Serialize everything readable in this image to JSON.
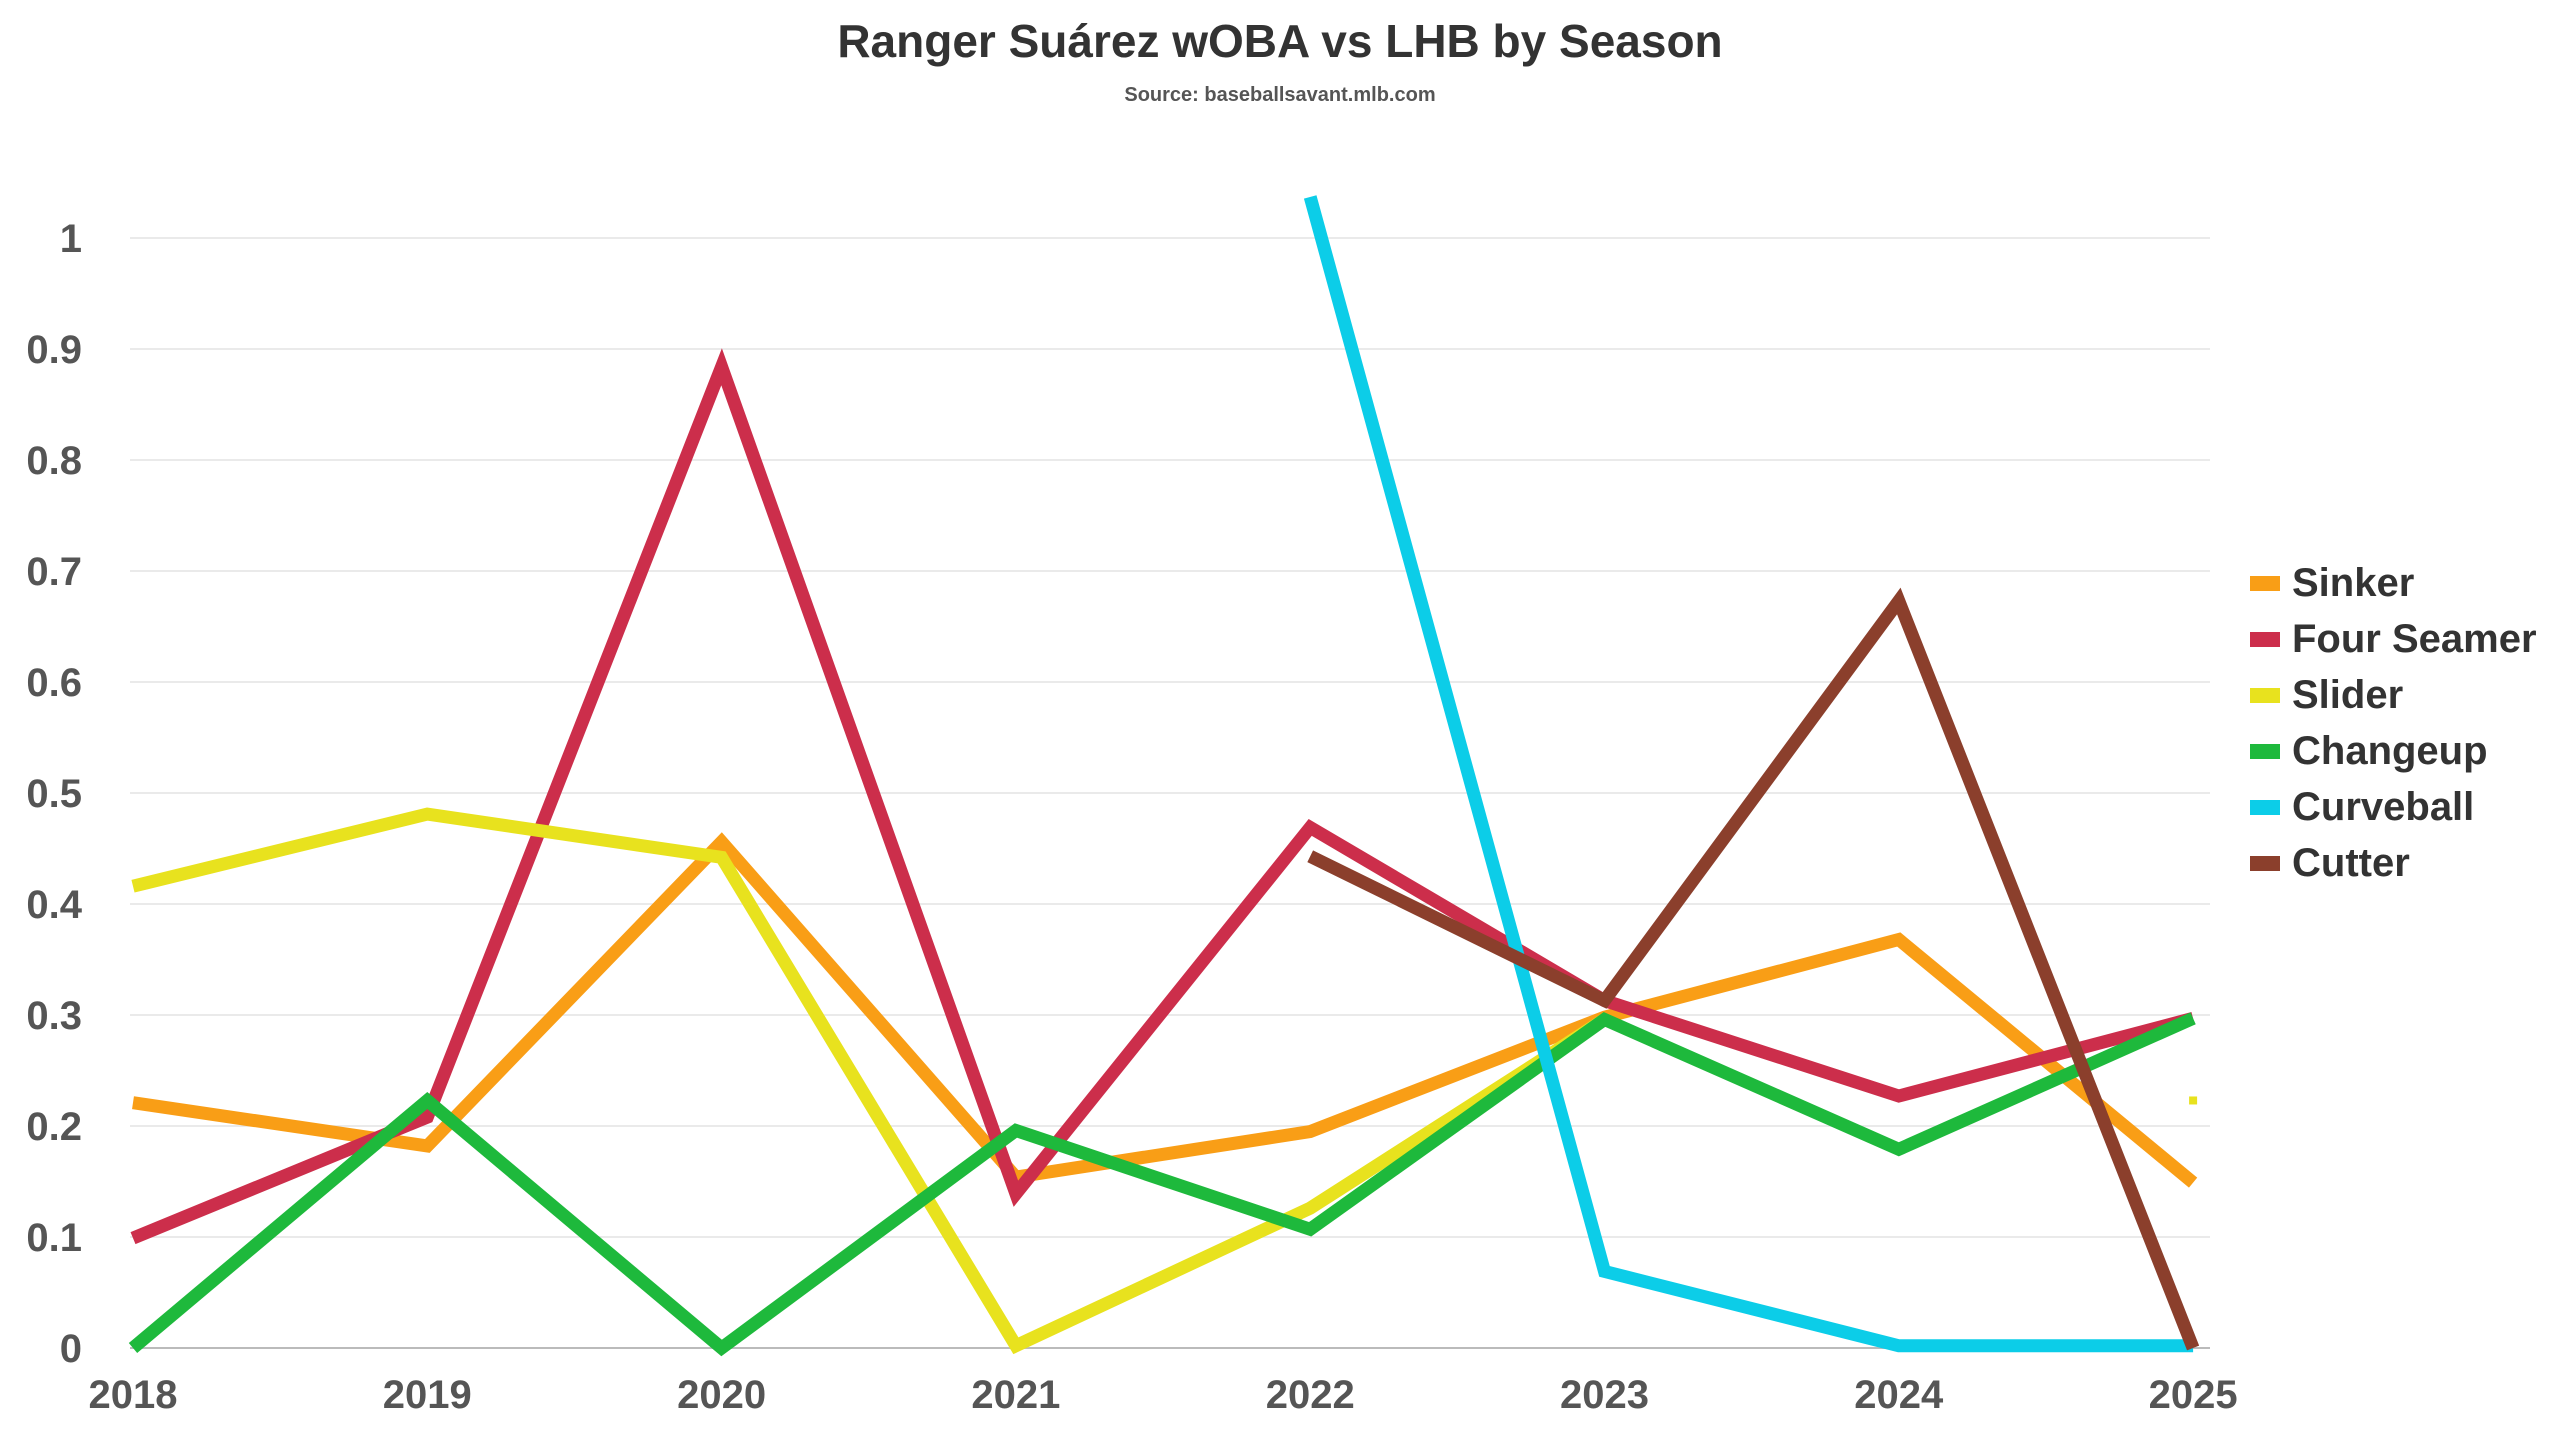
{
  "chart_data": {
    "type": "line",
    "title": "Ranger Suárez wOBA vs LHB by Season",
    "subtitle": "Source: baseballsavant.mlb.com",
    "xlabel": "",
    "ylabel": "",
    "x": [
      "2018",
      "2019",
      "2020",
      "2021",
      "2022",
      "2023",
      "2024",
      "2025"
    ],
    "ylim": [
      0,
      1.1
    ],
    "yticks": [
      0,
      0.1,
      0.2,
      0.3,
      0.4,
      0.5,
      0.6,
      0.7,
      0.8,
      0.9,
      1
    ],
    "grid": true,
    "legend": "right",
    "series": [
      {
        "name": "Sinker",
        "color": "#f99e16",
        "values": [
          0.221,
          0.182,
          0.456,
          0.154,
          0.195,
          0.298,
          0.368,
          0.149
        ]
      },
      {
        "name": "Four Seamer",
        "color": "#cc2e4b",
        "values": [
          0.099,
          0.208,
          0.884,
          0.139,
          0.469,
          0.313,
          0.227,
          0.297
        ]
      },
      {
        "name": "Slider",
        "color": "#e8e21e",
        "values": [
          0.416,
          0.481,
          0.442,
          0.002,
          0.126,
          0.296,
          null,
          0.223
        ]
      },
      {
        "name": "Changeup",
        "color": "#1eb93c",
        "values": [
          0.0,
          0.223,
          0.0,
          0.196,
          0.107,
          0.296,
          0.179,
          0.297
        ]
      },
      {
        "name": "Curveball",
        "color": "#0ccde8",
        "values": [
          null,
          null,
          null,
          null,
          1.037,
          0.069,
          0.002,
          0.002
        ]
      },
      {
        "name": "Cutter",
        "color": "#8b3f2c",
        "values": [
          null,
          null,
          null,
          null,
          0.443,
          0.313,
          0.673,
          0.0
        ]
      }
    ]
  }
}
